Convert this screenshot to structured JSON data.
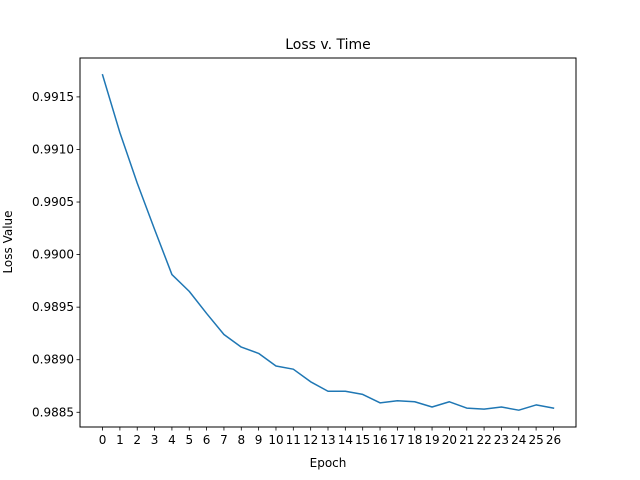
{
  "chart_data": {
    "type": "line",
    "title": "Loss v. Time",
    "xlabel": "Epoch",
    "ylabel": "Loss Value",
    "x": [
      0,
      1,
      2,
      3,
      4,
      5,
      6,
      7,
      8,
      9,
      10,
      11,
      12,
      13,
      14,
      15,
      16,
      17,
      18,
      19,
      20,
      21,
      22,
      23,
      24,
      25,
      26
    ],
    "series": [
      {
        "color": "#1f77b4",
        "values": [
          0.99171,
          0.99116,
          0.99068,
          0.99024,
          0.98981,
          0.98965,
          0.98944,
          0.98924,
          0.98912,
          0.98906,
          0.98894,
          0.98891,
          0.98879,
          0.9887,
          0.9887,
          0.98867,
          0.98859,
          0.98861,
          0.9886,
          0.98855,
          0.9886,
          0.98854,
          0.98853,
          0.98855,
          0.98852,
          0.98857,
          0.98854
        ]
      }
    ],
    "xticks": [
      "0",
      "1",
      "2",
      "3",
      "4",
      "5",
      "6",
      "7",
      "8",
      "9",
      "10",
      "11",
      "12",
      "13",
      "14",
      "15",
      "16",
      "17",
      "18",
      "19",
      "20",
      "21",
      "22",
      "23",
      "24",
      "25",
      "26"
    ],
    "yticks": [
      {
        "value": 0.9885,
        "label": "0.9885"
      },
      {
        "value": 0.989,
        "label": "0.9890"
      },
      {
        "value": 0.9895,
        "label": "0.9895"
      },
      {
        "value": 0.99,
        "label": "0.9900"
      },
      {
        "value": 0.9905,
        "label": "0.9905"
      },
      {
        "value": 0.991,
        "label": "0.9910"
      },
      {
        "value": 0.9915,
        "label": "0.9915"
      }
    ],
    "xlim": [
      -1.3,
      27.3
    ],
    "ylim": [
      0.98836,
      0.99187
    ],
    "grid": false,
    "legend": "none"
  }
}
